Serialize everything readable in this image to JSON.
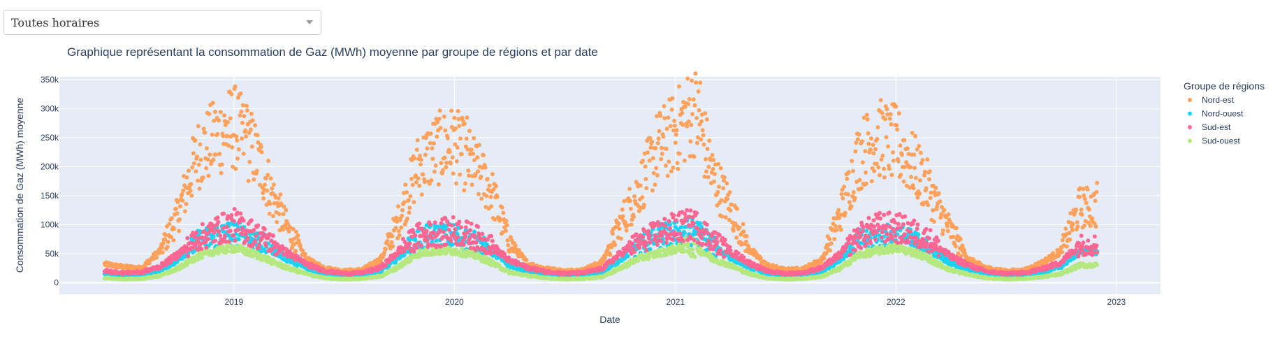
{
  "dropdown": {
    "selected": "Toutes horaires"
  },
  "chart_data": {
    "type": "scatter",
    "title": "Graphique représentant la consommation de Gaz (MWh) moyenne par groupe de régions et par date",
    "xlabel": "Date",
    "ylabel": "Consommation de Gaz (MWh) moyenne",
    "x_range": [
      "2018-03-18",
      "2023-03-15"
    ],
    "x_ticks": [
      "2019",
      "2020",
      "2021",
      "2022",
      "2023"
    ],
    "ylim": [
      -20000,
      355000
    ],
    "y_ticks": [
      0,
      50000,
      100000,
      150000,
      200000,
      250000,
      300000,
      350000
    ],
    "y_tick_labels": [
      "0",
      "50k",
      "100k",
      "150k",
      "200k",
      "250k",
      "300k",
      "350k"
    ],
    "grid": true,
    "legend": {
      "title": "Groupe de régions",
      "placement": "top-right, outside plot"
    },
    "date_span": [
      "2018-06-01",
      "2022-11-30"
    ],
    "sampling": "daily (approximate, read from chart)",
    "series": [
      {
        "name": "Nord-est",
        "color": "#FFA15A",
        "seasonal_profile": {
          "2018": [
            null,
            null,
            null,
            null,
            null,
            32000,
            27000,
            25000,
            55000,
            120000,
            220000,
            250000
          ],
          "2019": [
            270000,
            230000,
            160000,
            90000,
            40000,
            25000,
            20000,
            22000,
            40000,
            110000,
            200000,
            230000
          ],
          "2020": [
            240000,
            200000,
            160000,
            70000,
            32000,
            24000,
            20000,
            22000,
            35000,
            100000,
            160000,
            230000
          ],
          "2021": [
            260000,
            300000,
            190000,
            130000,
            60000,
            30000,
            22000,
            24000,
            40000,
            120000,
            220000,
            250000
          ],
          "2022": [
            240000,
            200000,
            150000,
            90000,
            40000,
            25000,
            20000,
            21000,
            35000,
            55000,
            130000,
            null
          ]
        },
        "peaks": [
          {
            "date": "2019-01-22",
            "value": 305000
          },
          {
            "date": "2020-01-22",
            "value": 285000
          },
          {
            "date": "2021-02-11",
            "value": 345000
          },
          {
            "date": "2021-12-22",
            "value": 283000
          },
          {
            "date": "2022-11-30",
            "value": 172000
          }
        ]
      },
      {
        "name": "Nord-ouest",
        "color": "#19D3F3",
        "seasonal_profile": {
          "2018": [
            null,
            null,
            null,
            null,
            null,
            15000,
            13000,
            14000,
            22000,
            40000,
            70000,
            80000
          ],
          "2019": [
            85000,
            75000,
            60000,
            40000,
            25000,
            15000,
            12000,
            13000,
            20000,
            45000,
            75000,
            80000
          ],
          "2020": [
            80000,
            70000,
            55000,
            30000,
            20000,
            14000,
            12000,
            13000,
            18000,
            40000,
            65000,
            80000
          ],
          "2021": [
            85000,
            90000,
            65000,
            45000,
            28000,
            15000,
            12000,
            13000,
            20000,
            42000,
            72000,
            78000
          ],
          "2022": [
            80000,
            70000,
            55000,
            35000,
            22000,
            14000,
            12000,
            13000,
            18000,
            28000,
            55000,
            null
          ]
        }
      },
      {
        "name": "Sud-est",
        "color": "#FF6692",
        "seasonal_profile": {
          "2018": [
            null,
            null,
            null,
            null,
            null,
            20000,
            17000,
            18000,
            28000,
            50000,
            75000,
            90000
          ],
          "2019": [
            100000,
            85000,
            70000,
            50000,
            32000,
            20000,
            16000,
            17000,
            26000,
            55000,
            80000,
            85000
          ],
          "2020": [
            90000,
            80000,
            65000,
            38000,
            26000,
            19000,
            16000,
            17000,
            24000,
            50000,
            70000,
            85000
          ],
          "2021": [
            95000,
            100000,
            75000,
            55000,
            35000,
            20000,
            16000,
            17000,
            26000,
            50000,
            80000,
            95000
          ],
          "2022": [
            95000,
            85000,
            70000,
            45000,
            30000,
            19000,
            16000,
            17000,
            24000,
            35000,
            65000,
            null
          ]
        }
      },
      {
        "name": "Sud-ouest",
        "color": "#B6E880",
        "seasonal_profile": {
          "2018": [
            null,
            null,
            null,
            null,
            null,
            8000,
            6000,
            7000,
            12000,
            25000,
            45000,
            55000
          ],
          "2019": [
            60000,
            50000,
            38000,
            25000,
            15000,
            8000,
            6000,
            7000,
            11000,
            28000,
            50000,
            55000
          ],
          "2020": [
            55000,
            48000,
            35000,
            18000,
            12000,
            8000,
            6000,
            7000,
            10000,
            25000,
            42000,
            50000
          ],
          "2021": [
            58000,
            62000,
            42000,
            30000,
            16000,
            8000,
            6000,
            7000,
            11000,
            25000,
            48000,
            55000
          ],
          "2022": [
            60000,
            52000,
            38000,
            22000,
            14000,
            8000,
            6000,
            7000,
            10000,
            15000,
            30000,
            null
          ]
        }
      }
    ]
  }
}
